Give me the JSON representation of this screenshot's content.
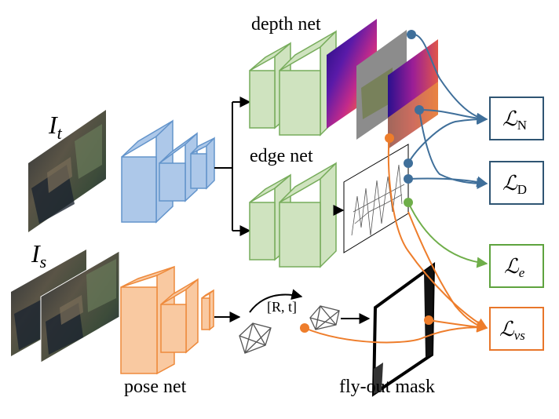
{
  "labels": {
    "depth_net": "depth net",
    "edge_net": "edge net",
    "pose_net": "pose net",
    "flyout_mask": "fly-out mask",
    "transform": "[R, t]",
    "input_target": "I",
    "input_target_sub": "t",
    "input_source": "I",
    "input_source_sub": "s"
  },
  "losses": {
    "normal": {
      "symbol": "ℒ",
      "sub": "N"
    },
    "depth": {
      "symbol": "ℒ",
      "sub": "D"
    },
    "edge": {
      "symbol": "ℒ",
      "sub": "e"
    },
    "view_synthesis": {
      "symbol": "ℒ",
      "sub": "vs"
    }
  },
  "colors": {
    "blue_block": "#a9c6e8",
    "blue_stroke": "#5b8fc9",
    "green_block": "#cfe3bf",
    "green_stroke": "#77ac5b",
    "orange_block": "#f9c9a1",
    "orange_stroke": "#ee8a3c",
    "blue_line": "#3f6f9a",
    "green_line": "#6fae4a",
    "orange_line": "#ee7d2b",
    "loss_blue": "#2f5573",
    "loss_green": "#5ea33e",
    "loss_orange": "#e8762a"
  },
  "icons": {
    "target_image": "street-scene-image",
    "source_images": "stacked-street-scene-images",
    "depth_maps": "depth-heatmap-stack",
    "edge_map": "edge-map-image",
    "point_cloud_a": "polyhedron-icon",
    "point_cloud_b": "polyhedron-icon",
    "mask": "flyout-mask-image"
  }
}
